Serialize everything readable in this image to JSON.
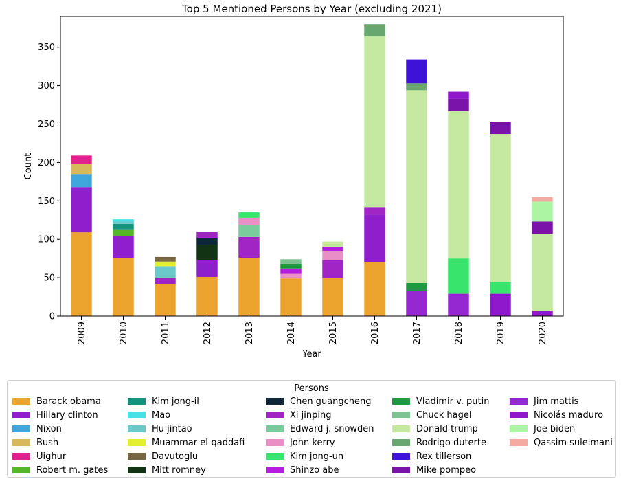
{
  "chart_data": {
    "type": "bar",
    "stacked": true,
    "title": "Top 5 Mentioned Persons by Year (excluding 2021)",
    "xlabel": "Year",
    "ylabel": "Count",
    "ylim": [
      0,
      390
    ],
    "yticks": [
      0,
      50,
      100,
      150,
      200,
      250,
      300,
      350
    ],
    "categories": [
      "2009",
      "2010",
      "2011",
      "2012",
      "2013",
      "2014",
      "2015",
      "2016",
      "2017",
      "2018",
      "2019",
      "2020"
    ],
    "grid": false,
    "legend_position": "bottom",
    "legend_title": "Persons",
    "series": [
      {
        "name": "Barack obama",
        "color": "#eca42e",
        "values": [
          109,
          76,
          42,
          51,
          76,
          49,
          50,
          70,
          0,
          0,
          0,
          0
        ]
      },
      {
        "name": "Hillary clinton",
        "color": "#8f1fcc",
        "values": [
          59,
          28,
          0,
          22,
          0,
          0,
          0,
          62,
          0,
          0,
          0,
          0
        ]
      },
      {
        "name": "Nixon",
        "color": "#3fa6dc",
        "values": [
          17,
          0,
          0,
          0,
          0,
          0,
          0,
          0,
          0,
          0,
          0,
          0
        ]
      },
      {
        "name": "Bush",
        "color": "#d7b85a",
        "values": [
          13,
          0,
          0,
          0,
          0,
          0,
          0,
          0,
          0,
          0,
          0,
          0
        ]
      },
      {
        "name": "Uighur",
        "color": "#e0208f",
        "values": [
          11,
          0,
          0,
          0,
          0,
          0,
          0,
          0,
          0,
          0,
          0,
          0
        ]
      },
      {
        "name": "Robert m. gates",
        "color": "#55b62a",
        "values": [
          0,
          9,
          0,
          0,
          0,
          0,
          0,
          0,
          0,
          0,
          0,
          0
        ]
      },
      {
        "name": "Kim jong-il",
        "color": "#14947e",
        "values": [
          0,
          7,
          0,
          0,
          0,
          0,
          0,
          0,
          0,
          0,
          0,
          0
        ]
      },
      {
        "name": "Mao",
        "color": "#46e2e6",
        "values": [
          0,
          3,
          0,
          0,
          0,
          0,
          0,
          0,
          0,
          0,
          0,
          0
        ]
      },
      {
        "name": "Hu jintao",
        "color": "#6cc9ca",
        "values": [
          0,
          3,
          15,
          0,
          0,
          0,
          0,
          0,
          0,
          0,
          0,
          0
        ]
      },
      {
        "name": "Muammar el-qaddafi",
        "color": "#e3ef2e",
        "values": [
          0,
          0,
          6,
          0,
          0,
          0,
          0,
          0,
          0,
          0,
          0,
          0
        ]
      },
      {
        "name": "Davutoglu",
        "color": "#776640",
        "values": [
          0,
          0,
          6,
          0,
          0,
          0,
          0,
          0,
          0,
          0,
          0,
          0
        ]
      },
      {
        "name": "Mitt romney",
        "color": "#133315",
        "values": [
          0,
          0,
          0,
          20,
          0,
          0,
          0,
          0,
          0,
          0,
          0,
          0
        ]
      },
      {
        "name": "Chen guangcheng",
        "color": "#0d2738",
        "values": [
          0,
          0,
          0,
          9,
          0,
          0,
          0,
          0,
          0,
          0,
          0,
          0
        ]
      },
      {
        "name": "Xi jinping",
        "color": "#a125c5",
        "values": [
          0,
          0,
          8,
          8,
          27,
          0,
          23,
          10,
          0,
          0,
          0,
          0
        ]
      },
      {
        "name": "Edward j. snowden",
        "color": "#79cc9c",
        "values": [
          0,
          0,
          0,
          0,
          16,
          0,
          0,
          0,
          0,
          0,
          0,
          0
        ]
      },
      {
        "name": "John kerry",
        "color": "#ea8fc5",
        "values": [
          0,
          0,
          0,
          0,
          9,
          6,
          12,
          0,
          0,
          0,
          0,
          0
        ]
      },
      {
        "name": "Kim jong-un",
        "color": "#39e46c",
        "values": [
          0,
          0,
          0,
          0,
          7,
          0,
          0,
          0,
          0,
          46,
          15,
          0
        ]
      },
      {
        "name": "Shinzo abe",
        "color": "#b51ee0",
        "values": [
          0,
          0,
          0,
          0,
          0,
          7,
          5,
          0,
          0,
          0,
          0,
          0
        ]
      },
      {
        "name": "Vladimir v. putin",
        "color": "#1f9940",
        "values": [
          0,
          0,
          0,
          0,
          0,
          6,
          0,
          0,
          10,
          0,
          0,
          0
        ]
      },
      {
        "name": "Chuck hagel",
        "color": "#7cc391",
        "values": [
          0,
          0,
          0,
          0,
          0,
          6,
          0,
          0,
          0,
          0,
          0,
          0
        ]
      },
      {
        "name": "Donald trump",
        "color": "#c4e8a0",
        "values": [
          0,
          0,
          0,
          0,
          0,
          0,
          7,
          222,
          251,
          192,
          193,
          100
        ]
      },
      {
        "name": "Rodrigo duterte",
        "color": "#68a76e",
        "values": [
          0,
          0,
          0,
          0,
          0,
          0,
          0,
          16,
          9,
          0,
          0,
          0
        ]
      },
      {
        "name": "Rex tillerson",
        "color": "#3f12d8",
        "values": [
          0,
          0,
          0,
          0,
          0,
          0,
          0,
          0,
          31,
          0,
          0,
          0
        ]
      },
      {
        "name": "Mike pompeo",
        "color": "#7a14a8",
        "values": [
          0,
          0,
          0,
          0,
          0,
          0,
          0,
          0,
          0,
          16,
          16,
          16
        ]
      },
      {
        "name": "Jim mattis",
        "color": "#9628d1",
        "values": [
          0,
          0,
          0,
          0,
          0,
          0,
          0,
          0,
          33,
          29,
          0,
          0
        ]
      },
      {
        "name": "Nicolás maduro",
        "color": "#8f17cc",
        "values": [
          0,
          0,
          0,
          0,
          0,
          0,
          0,
          0,
          0,
          9,
          29,
          7
        ]
      },
      {
        "name": "Joe biden",
        "color": "#acf5a3",
        "values": [
          0,
          0,
          0,
          0,
          0,
          0,
          0,
          0,
          0,
          0,
          0,
          26
        ]
      },
      {
        "name": "Qassim suleimani",
        "color": "#f4aaa0",
        "values": [
          0,
          0,
          0,
          0,
          0,
          0,
          0,
          0,
          0,
          0,
          0,
          6
        ]
      }
    ],
    "stack_order": [
      [
        "Barack obama",
        "Hillary clinton",
        "Nixon",
        "Bush",
        "Uighur"
      ],
      [
        "Barack obama",
        "Hillary clinton",
        "Robert m. gates",
        "Kim jong-il",
        "Hu jintao",
        "Mao"
      ],
      [
        "Barack obama",
        "Xi jinping",
        "Hu jintao",
        "Muammar el-qaddafi",
        "Davutoglu"
      ],
      [
        "Barack obama",
        "Hillary clinton",
        "Mitt romney",
        "Chen guangcheng",
        "Xi jinping"
      ],
      [
        "Barack obama",
        "Xi jinping",
        "Edward j. snowden",
        "John kerry",
        "Kim jong-un"
      ],
      [
        "Barack obama",
        "John kerry",
        "Shinzo abe",
        "Vladimir v. putin",
        "Chuck hagel"
      ],
      [
        "Barack obama",
        "Xi jinping",
        "John kerry",
        "Shinzo abe",
        "Donald trump"
      ],
      [
        "Barack obama",
        "Hillary clinton",
        "Xi jinping",
        "Donald trump",
        "Rodrigo duterte"
      ],
      [
        "Jim mattis",
        "Vladimir v. putin",
        "Donald trump",
        "Rodrigo duterte",
        "Rex tillerson"
      ],
      [
        "Jim mattis",
        "Kim jong-un",
        "Donald trump",
        "Mike pompeo",
        "Nicolás maduro"
      ],
      [
        "Nicolás maduro",
        "Kim jong-un",
        "Donald trump",
        "Mike pompeo"
      ],
      [
        "Nicolás maduro",
        "Donald trump",
        "Mike pompeo",
        "Joe biden",
        "Qassim suleimani"
      ]
    ]
  }
}
